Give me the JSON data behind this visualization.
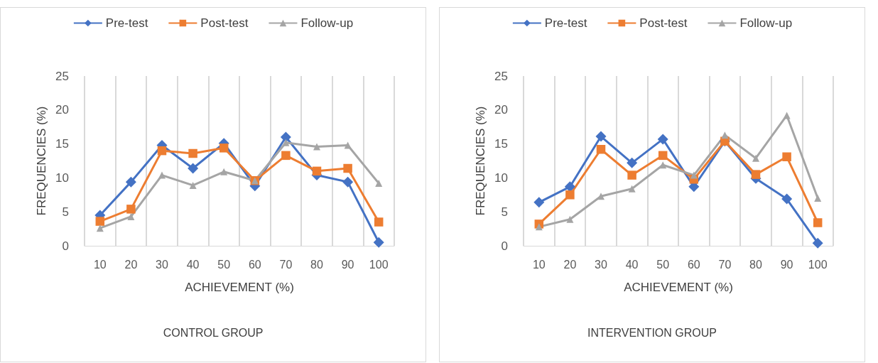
{
  "chart_data": [
    {
      "type": "line",
      "title": "CONTROL GROUP",
      "xlabel": "ACHIEVEMENT (%)",
      "ylabel": "FREQUENCIES (%)",
      "categories": [
        "10",
        "20",
        "30",
        "40",
        "50",
        "60",
        "70",
        "80",
        "90",
        "100"
      ],
      "ylim": [
        0,
        25
      ],
      "yticks": [
        0,
        5,
        10,
        15,
        20,
        25
      ],
      "grid": "x",
      "legend": "top",
      "series": [
        {
          "name": "Pre-test",
          "color": "#4472c4",
          "marker": "diamond",
          "values": [
            4.5,
            9.4,
            14.8,
            11.4,
            15.1,
            8.8,
            16.0,
            10.4,
            9.4,
            0.5
          ]
        },
        {
          "name": "Post-test",
          "color": "#ed7d31",
          "marker": "square",
          "values": [
            3.6,
            5.4,
            14.0,
            13.6,
            14.4,
            9.6,
            13.3,
            11.0,
            11.4,
            3.5
          ]
        },
        {
          "name": "Follow-up",
          "color": "#a5a5a5",
          "marker": "triangle",
          "values": [
            2.6,
            4.3,
            10.4,
            8.9,
            10.9,
            9.6,
            15.2,
            14.6,
            14.8,
            9.2
          ]
        }
      ]
    },
    {
      "type": "line",
      "title": "INTERVENTION GROUP",
      "xlabel": "ACHIEVEMENT (%)",
      "ylabel": "FREQUENCIES (%)",
      "categories": [
        "10",
        "20",
        "30",
        "40",
        "50",
        "60",
        "70",
        "80",
        "90",
        "100"
      ],
      "ylim": [
        0,
        25
      ],
      "yticks": [
        0,
        5,
        10,
        15,
        20,
        25
      ],
      "grid": "x",
      "legend": "top",
      "series": [
        {
          "name": "Pre-test",
          "color": "#4472c4",
          "marker": "diamond",
          "values": [
            6.4,
            8.7,
            16.1,
            12.2,
            15.7,
            8.7,
            15.4,
            9.9,
            6.9,
            0.4
          ]
        },
        {
          "name": "Post-test",
          "color": "#ed7d31",
          "marker": "square",
          "values": [
            3.2,
            7.5,
            14.2,
            10.4,
            13.3,
            9.8,
            15.4,
            10.5,
            13.1,
            3.4
          ]
        },
        {
          "name": "Follow-up",
          "color": "#a5a5a5",
          "marker": "triangle",
          "values": [
            2.8,
            3.9,
            7.3,
            8.4,
            11.9,
            10.4,
            16.3,
            12.9,
            19.2,
            7.0
          ]
        }
      ]
    }
  ]
}
